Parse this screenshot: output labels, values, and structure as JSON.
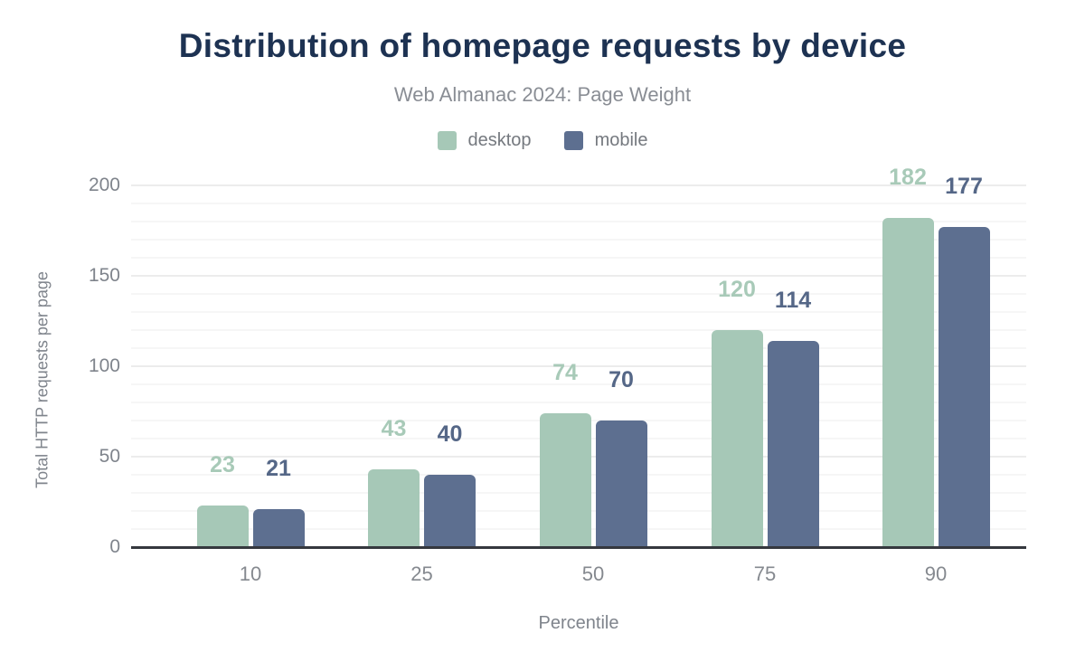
{
  "header": {
    "title": "Distribution of homepage requests by device",
    "subtitle": "Web Almanac 2024: Page Weight"
  },
  "chart_data": {
    "type": "bar",
    "title": "Distribution of homepage requests by device",
    "subtitle": "Web Almanac 2024: Page Weight",
    "categories": [
      "10",
      "25",
      "50",
      "75",
      "90"
    ],
    "series": [
      {
        "name": "desktop",
        "values": [
          23,
          43,
          74,
          120,
          182
        ],
        "color": "#a6c8b7",
        "label_color": "#a8cab8"
      },
      {
        "name": "mobile",
        "values": [
          21,
          40,
          70,
          114,
          177
        ],
        "color": "#5d6f90",
        "label_color": "#556787"
      }
    ],
    "xlabel": "Percentile",
    "ylabel": "Total HTTP requests per page",
    "ylim": [
      0,
      200
    ],
    "yticks": [
      0,
      50,
      100,
      150,
      200
    ],
    "grid": "horizontal minor every 10, major every 50",
    "legend_position": "top",
    "data_labels": "above bars, colored per series"
  },
  "colors": {
    "title": "#1d3252",
    "subtitle": "#898d94",
    "axis_line": "#35383e",
    "tick_text": "#7f848c",
    "grid_minor": "#f6f6f6",
    "grid_major": "#ececec",
    "background": "#ffffff"
  }
}
